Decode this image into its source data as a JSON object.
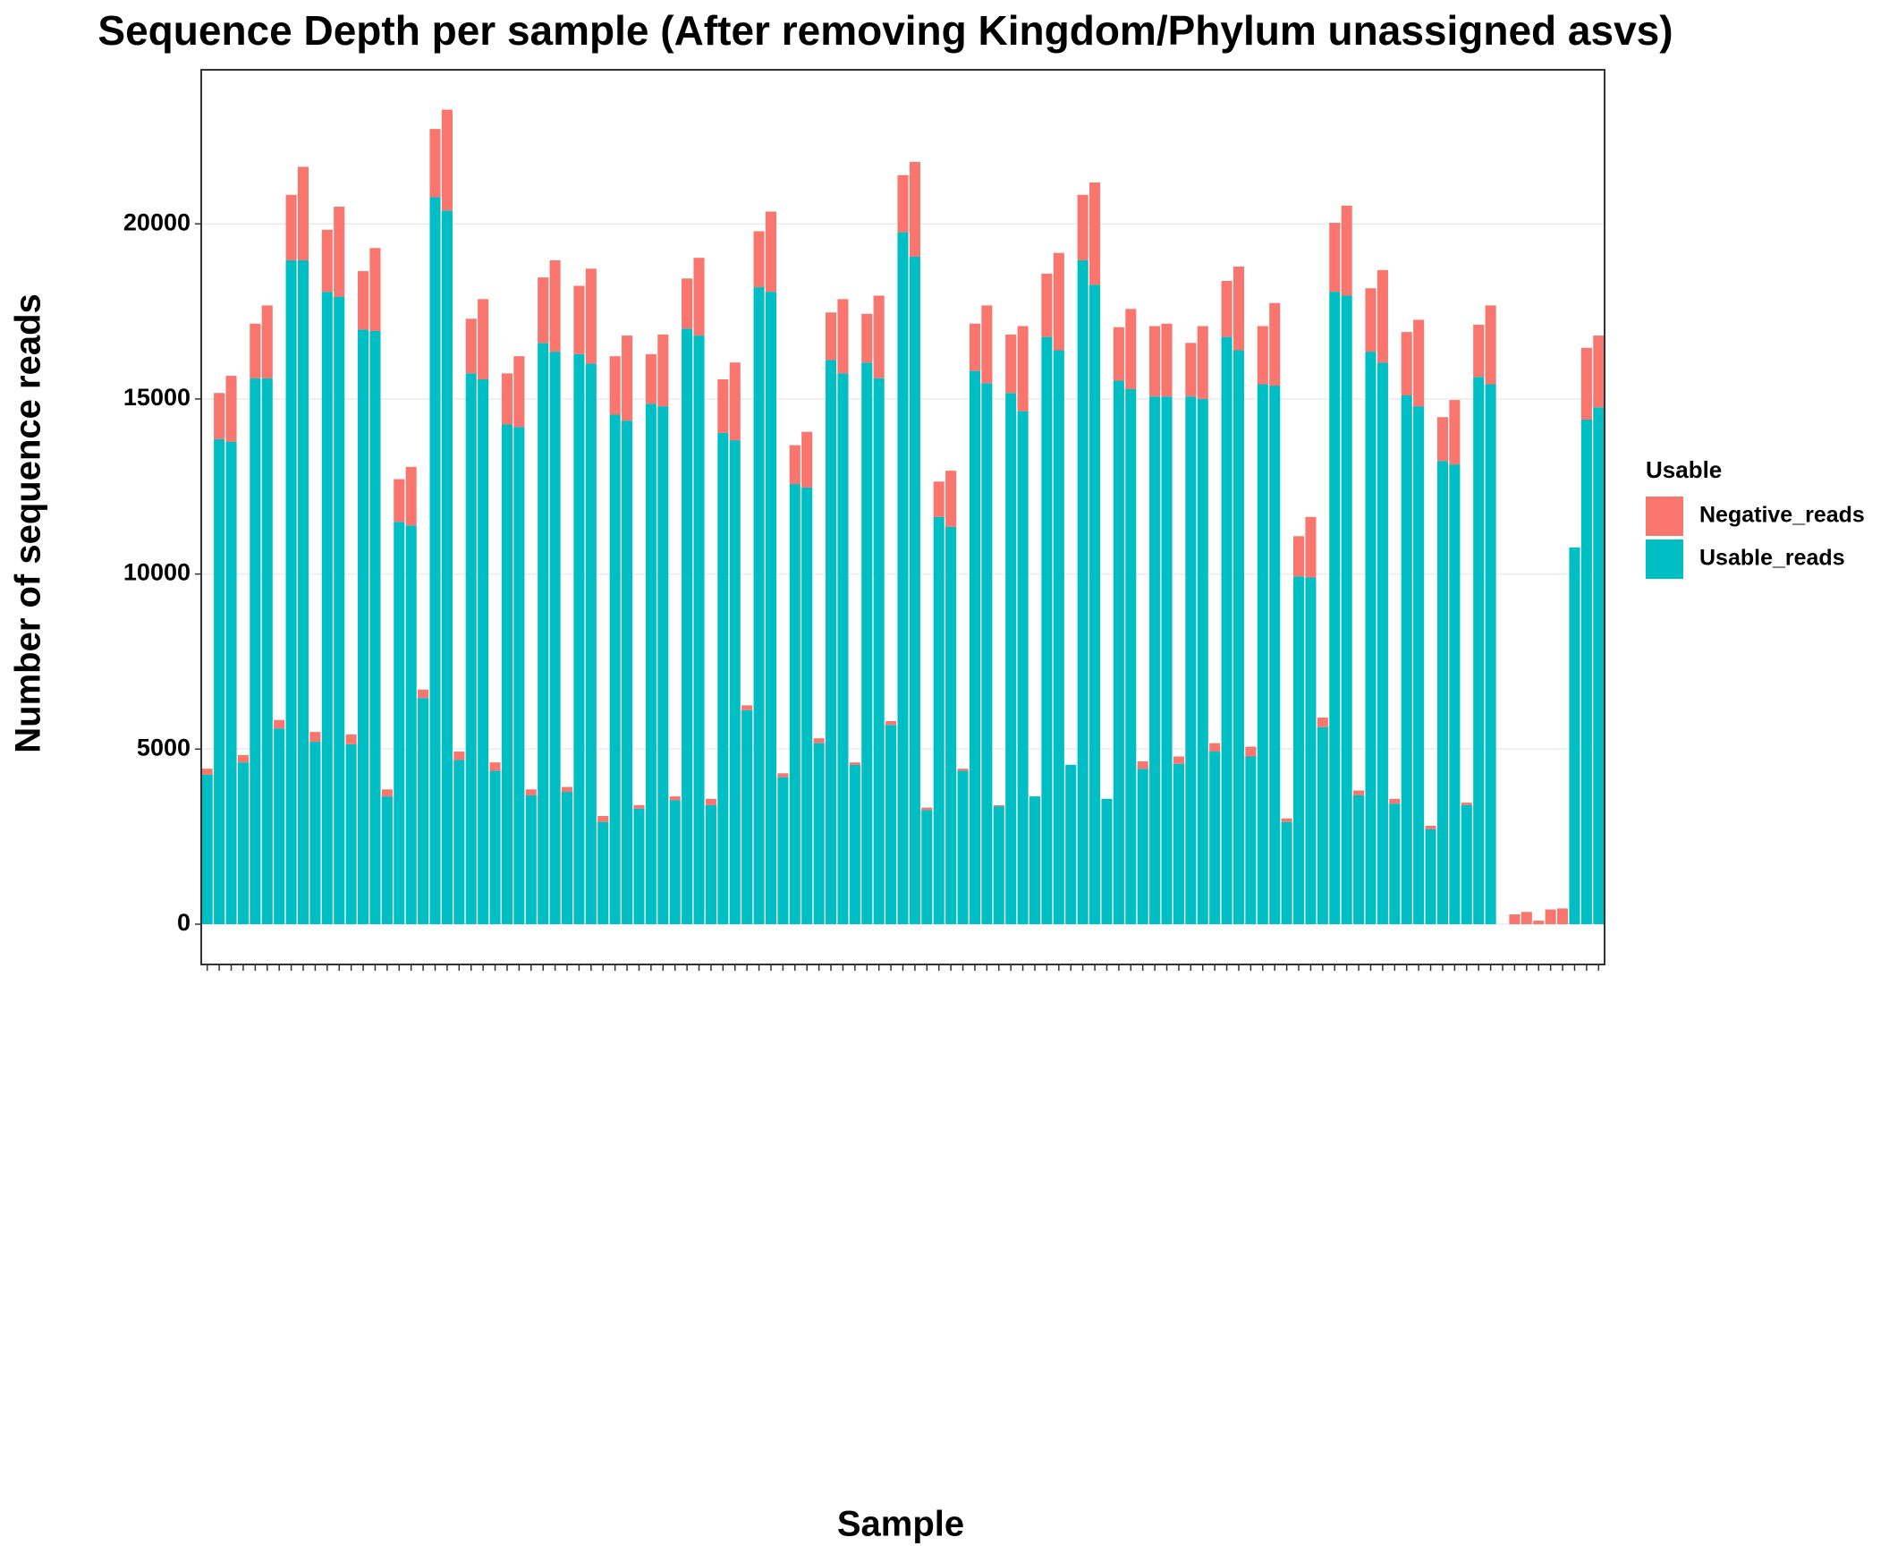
{
  "chart_data": {
    "type": "stacked_bar",
    "title": "Sequence Depth per sample (After removing Kingdom/Phylum unassigned asvs)",
    "x_label": "Sample",
    "y_label": "Number of sequence reads",
    "legend_title": "Usable",
    "legend_position": "right",
    "grid": true,
    "ylim": [
      -1150,
      24400
    ],
    "yticks": [
      0,
      5000,
      10000,
      15000,
      20000
    ],
    "categories": [
      null,
      null,
      null,
      null,
      null,
      null,
      null,
      null,
      null,
      null,
      null,
      null,
      null,
      null,
      null,
      null,
      null,
      null,
      null,
      null,
      null,
      null,
      null,
      null,
      null,
      null,
      null,
      null,
      null,
      null,
      null,
      null,
      null,
      null,
      null,
      null,
      null,
      null,
      null,
      null,
      null,
      null,
      null,
      null,
      null,
      null,
      null,
      null,
      null,
      null,
      null,
      null,
      null,
      null,
      null,
      null,
      null,
      null,
      null,
      null,
      null,
      null,
      null,
      null,
      null,
      null,
      null,
      null,
      null,
      null,
      null,
      null,
      null,
      null,
      null,
      null,
      null,
      null,
      null,
      null,
      null,
      null,
      null,
      null,
      null,
      null,
      null,
      null,
      null,
      null,
      null,
      null,
      null,
      null,
      null,
      null,
      null,
      null,
      null,
      null,
      null,
      null,
      null,
      null,
      null,
      null,
      null,
      null,
      null,
      null,
      null,
      null,
      null,
      null,
      null,
      null,
      null
    ],
    "series": [
      {
        "name": "Negative_reads",
        "color": "#F8766D",
        "values": [
          170,
          1320,
          1880,
          210,
          1560,
          2080,
          240,
          1870,
          2670,
          280,
          1770,
          2570,
          280,
          1670,
          2370,
          200,
          1220,
          1670,
          240,
          1950,
          2880,
          240,
          1560,
          2290,
          240,
          1460,
          2020,
          170,
          1870,
          2610,
          140,
          1950,
          2710,
          170,
          1670,
          2430,
          100,
          1420,
          2050,
          110,
          1430,
          2220,
          180,
          1530,
          2220,
          140,
          1600,
          2290,
          110,
          1110,
          1590,
          140,
          1360,
          2120,
          70,
          1390,
          2360,
          110,
          1630,
          2710,
          70,
          1010,
          1600,
          60,
          1350,
          2220,
          30,
          1670,
          2430,
          0,
          1810,
          2780,
          0,
          1870,
          2920,
          0,
          1530,
          2290,
          210,
          2010,
          2080,
          210,
          1530,
          2080,
          240,
          1600,
          2390,
          280,
          1660,
          2360,
          100,
          1150,
          1730,
          270,
          1970,
          2570,
          140,
          1810,
          2640,
          140,
          1810,
          2470,
          100,
          1250,
          1840,
          70,
          1490,
          2250,
          0,
          280,
          350,
          100,
          420,
          450,
          0,
          2050,
          2050
        ]
      },
      {
        "name": "Usable_reads",
        "color": "#00BFC4",
        "values": [
          4270,
          13850,
          13780,
          4620,
          15590,
          15590,
          5590,
          18960,
          18960,
          5210,
          18060,
          17920,
          5140,
          16980,
          16940,
          3650,
          11490,
          11390,
          6460,
          20760,
          20380,
          4690,
          15730,
          15560,
          4380,
          14270,
          14200,
          3680,
          16600,
          16350,
          3780,
          16280,
          16010,
          2920,
          14550,
          14380,
          3300,
          14860,
          14790,
          3540,
          17010,
          16810,
          3400,
          14030,
          13820,
          6110,
          18190,
          18060,
          4200,
          12570,
          12470,
          5170,
          16110,
          15730,
          4550,
          16040,
          15590,
          5690,
          19760,
          19060,
          3260,
          11630,
          11350,
          4380,
          15800,
          15450,
          3370,
          15170,
          14650,
          3650,
          16770,
          16390,
          4550,
          18960,
          18260,
          3580,
          15520,
          15280,
          4440,
          15070,
          15070,
          4580,
          15070,
          15000,
          4930,
          16770,
          16390,
          4790,
          15420,
          15380,
          2920,
          9930,
          9900,
          5630,
          18060,
          17950,
          3680,
          16350,
          16040,
          3440,
          15100,
          14790,
          2710,
          13230,
          13130,
          3400,
          15630,
          15420,
          0,
          0,
          0,
          0,
          0,
          0,
          10760,
          14410,
          14760
        ]
      }
    ]
  }
}
